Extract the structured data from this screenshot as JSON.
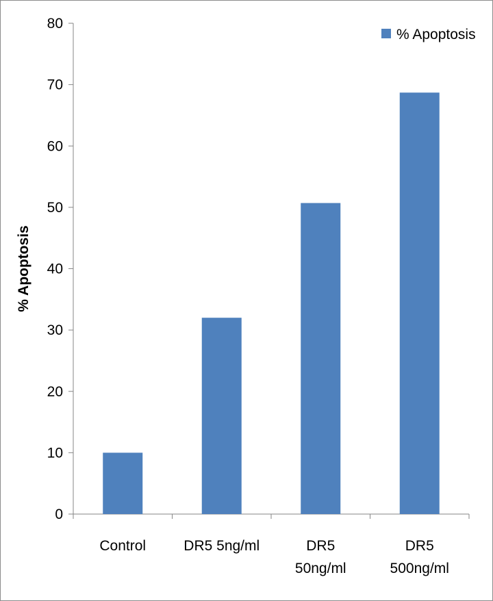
{
  "chart_data": {
    "type": "bar",
    "categories": [
      [
        "Control"
      ],
      [
        "DR5 5ng/ml"
      ],
      [
        "DR5",
        "50ng/ml"
      ],
      [
        "DR5",
        "500ng/ml"
      ]
    ],
    "series": [
      {
        "name": "% Apoptosis",
        "values": [
          10,
          32,
          50.7,
          68.7
        ],
        "color": "#4f81bd"
      }
    ],
    "ylabel": "% Apoptosis",
    "xlabel": "",
    "ylim": [
      0,
      80
    ],
    "yticks": [
      0,
      10,
      20,
      30,
      40,
      50,
      60,
      70,
      80
    ],
    "legend_position": "top-right",
    "grid": false
  }
}
